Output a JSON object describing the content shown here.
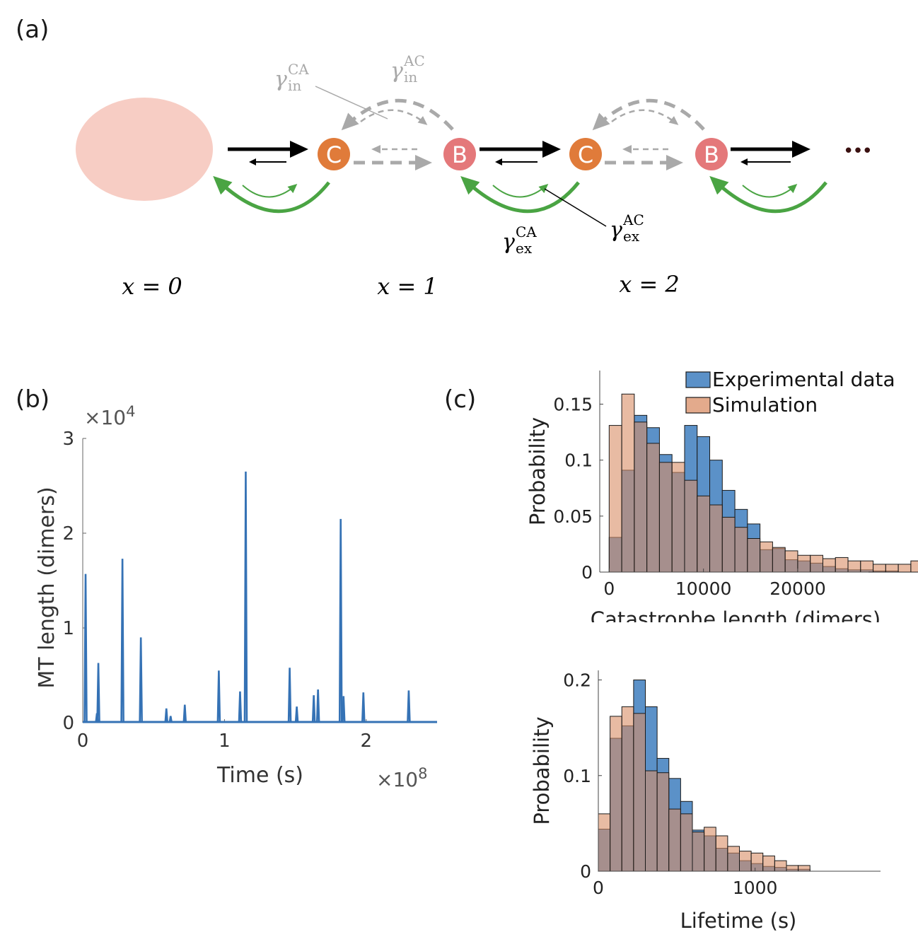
{
  "panels": {
    "a": "(a)",
    "b": "(b)",
    "c": "(c)"
  },
  "diagram": {
    "nodes": [
      "C",
      "B",
      "C",
      "B"
    ],
    "ellipsis": "•••",
    "positions": [
      "x = 0",
      "x = 1",
      "x = 2"
    ],
    "rates": {
      "in_CA": {
        "base": "γ",
        "sub": "in",
        "sup": "CA"
      },
      "in_AC": {
        "base": "γ",
        "sub": "in",
        "sup": "AC"
      },
      "ex_CA": {
        "base": "γ",
        "sub": "ex",
        "sup": "CA"
      },
      "ex_AC": {
        "base": "γ",
        "sub": "ex",
        "sup": "AC"
      }
    },
    "colors": {
      "compartment": "#f7cdc4",
      "C": "#e07b3a",
      "B": "#e4787a",
      "black": "#000000",
      "gray": "#a9a9a9",
      "green": "#4aa443"
    }
  },
  "chart_data": [
    {
      "id": "b",
      "type": "line",
      "xlabel": "Time (s)",
      "ylabel": "MT length (dimers)",
      "x_multiplier": "×10^8",
      "y_multiplier": "×10^4",
      "xlim": [
        0,
        2.5
      ],
      "ylim": [
        0,
        3
      ],
      "xticks": [
        0,
        1,
        2
      ],
      "yticks": [
        0,
        1,
        2,
        3
      ],
      "color": "#3572b5",
      "spikes": [
        {
          "t": 0.02,
          "h": 1.57
        },
        {
          "t": 0.1,
          "h": 0.1
        },
        {
          "t": 0.11,
          "h": 0.63
        },
        {
          "t": 0.28,
          "h": 1.73
        },
        {
          "t": 0.41,
          "h": 0.9
        },
        {
          "t": 0.59,
          "h": 0.15
        },
        {
          "t": 0.62,
          "h": 0.07
        },
        {
          "t": 0.72,
          "h": 0.19
        },
        {
          "t": 0.96,
          "h": 0.55
        },
        {
          "t": 1.11,
          "h": 0.33
        },
        {
          "t": 1.15,
          "h": 2.65
        },
        {
          "t": 1.46,
          "h": 0.58
        },
        {
          "t": 1.51,
          "h": 0.17
        },
        {
          "t": 1.63,
          "h": 0.29
        },
        {
          "t": 1.66,
          "h": 0.35
        },
        {
          "t": 1.82,
          "h": 2.15
        },
        {
          "t": 1.84,
          "h": 0.28
        },
        {
          "t": 1.98,
          "h": 0.32
        },
        {
          "t": 2.3,
          "h": 0.34
        }
      ]
    },
    {
      "id": "c1",
      "type": "bar",
      "xlabel": "Catastrophe length (dimers)",
      "ylabel": "Probability",
      "xlim": [
        -1000,
        27500
      ],
      "ylim": [
        0,
        0.18
      ],
      "xticks": [
        0,
        10000,
        20000
      ],
      "yticks": [
        0,
        0.05,
        0.1,
        0.15
      ],
      "ytick_labels": [
        "0",
        "0.05",
        "0.1",
        "0.15"
      ],
      "bin_start": 0,
      "bin_width": 1333,
      "legend_position": "top-right",
      "series": [
        {
          "name": "Experimental data",
          "color": "#5b91c8",
          "values": [
            0.031,
            0.091,
            0.14,
            0.129,
            0.105,
            0.089,
            0.131,
            0.121,
            0.1,
            0.073,
            0.056,
            0.043,
            0.02,
            0.021,
            0.011,
            0.01,
            0.008,
            0.005,
            0.003,
            0.002,
            0.002,
            0.001,
            0.001,
            0.0,
            0.0,
            0.001
          ]
        },
        {
          "name": "Simulation",
          "color": "#d98e66",
          "values": [
            0.131,
            0.159,
            0.134,
            0.115,
            0.098,
            0.098,
            0.082,
            0.068,
            0.06,
            0.049,
            0.04,
            0.03,
            0.027,
            0.022,
            0.019,
            0.015,
            0.015,
            0.012,
            0.013,
            0.01,
            0.01,
            0.007,
            0.007,
            0.007,
            0.01,
            0.007
          ]
        }
      ]
    },
    {
      "id": "c2",
      "type": "bar",
      "xlabel": "Lifetime (s)",
      "ylabel": "Probability",
      "xlim": [
        0,
        1800
      ],
      "ylim": [
        0,
        0.21
      ],
      "xticks": [
        0,
        1000
      ],
      "yticks": [
        0,
        0.1,
        0.2
      ],
      "ytick_labels": [
        "0",
        "0.1",
        "0.2"
      ],
      "bin_start": 0,
      "bin_width": 75,
      "series": [
        {
          "name": "Experimental data",
          "color": "#5b91c8",
          "values": [
            0.044,
            0.139,
            0.152,
            0.2,
            0.172,
            0.118,
            0.097,
            0.073,
            0.043,
            0.037,
            0.024,
            0.019,
            0.011,
            0.008,
            0.005,
            0.004,
            0.002,
            0.002
          ]
        },
        {
          "name": "Simulation",
          "color": "#d98e66",
          "values": [
            0.06,
            0.162,
            0.172,
            0.165,
            0.105,
            0.103,
            0.065,
            0.06,
            0.041,
            0.046,
            0.037,
            0.026,
            0.021,
            0.019,
            0.016,
            0.011,
            0.006,
            0.006
          ]
        }
      ]
    }
  ]
}
